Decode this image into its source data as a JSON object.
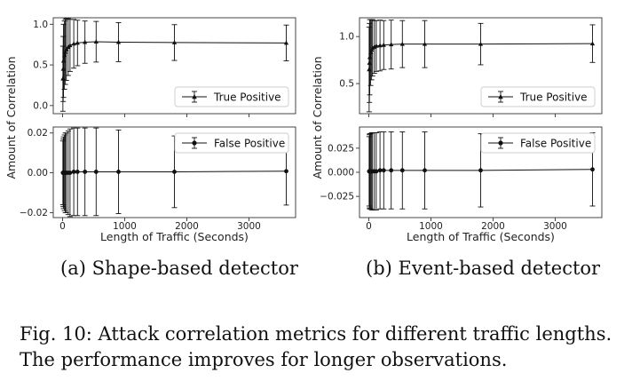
{
  "chart_data": [
    {
      "type": "line",
      "id": "a",
      "caption": "(a) Shape-based detector",
      "xlabel": "Length of Traffic (Seconds)",
      "ylabel": "Amount of Correlation",
      "xlim": [
        -150,
        3750
      ],
      "xticks": [
        0,
        1000,
        2000,
        3000
      ],
      "grid": false,
      "panels": [
        {
          "name": "top",
          "ylim": [
            -0.1,
            1.08
          ],
          "yticks": [
            0.0,
            0.5,
            1.0
          ],
          "ytick_labels": [
            "0.0",
            "0.5",
            "1.0"
          ],
          "legend": "bottom-right",
          "series": [
            {
              "name": "True Positive",
              "marker": "triangle",
              "x": [
                5,
                10,
                15,
                30,
                45,
                60,
                90,
                120,
                180,
                240,
                360,
                540,
                900,
                1800,
                3600
              ],
              "y": [
                0.33,
                0.45,
                0.55,
                0.62,
                0.66,
                0.69,
                0.72,
                0.74,
                0.76,
                0.77,
                0.78,
                0.785,
                0.78,
                0.775,
                0.77
              ],
              "err": [
                0.4,
                0.4,
                0.45,
                0.42,
                0.4,
                0.38,
                0.35,
                0.32,
                0.3,
                0.28,
                0.26,
                0.25,
                0.24,
                0.22,
                0.22
              ]
            }
          ]
        },
        {
          "name": "bottom",
          "ylim": [
            -0.0225,
            0.023
          ],
          "yticks": [
            -0.02,
            0.0,
            0.02
          ],
          "ytick_labels": [
            "−0.02",
            "0.00",
            "0.02"
          ],
          "legend": "top-right",
          "series": [
            {
              "name": "False Positive",
              "marker": "circle",
              "x": [
                5,
                10,
                15,
                30,
                45,
                60,
                90,
                120,
                180,
                240,
                360,
                540,
                900,
                1800,
                3600
              ],
              "y": [
                0.0,
                0.0,
                0.0,
                0.0,
                0.0,
                0.0,
                0.0,
                0.0,
                0.0005,
                0.0005,
                0.0005,
                0.0005,
                0.0005,
                0.0005,
                0.0008
              ],
              "err": [
                0.016,
                0.017,
                0.018,
                0.019,
                0.02,
                0.02,
                0.021,
                0.022,
                0.022,
                0.022,
                0.022,
                0.022,
                0.021,
                0.018,
                0.017
              ]
            }
          ]
        }
      ]
    },
    {
      "type": "line",
      "id": "b",
      "caption": "(b) Event-based detector",
      "xlabel": "Length of Traffic (Seconds)",
      "ylabel": "Amount of Correlation",
      "xlim": [
        -150,
        3750
      ],
      "xticks": [
        0,
        1000,
        2000,
        3000
      ],
      "grid": false,
      "panels": [
        {
          "name": "top",
          "ylim": [
            0.18,
            1.2
          ],
          "yticks": [
            0.5,
            1.0
          ],
          "ytick_labels": [
            "0.5",
            "1.0"
          ],
          "legend": "bottom-right",
          "series": [
            {
              "name": "True Positive",
              "marker": "triangle",
              "x": [
                5,
                10,
                15,
                30,
                45,
                60,
                90,
                120,
                180,
                240,
                360,
                540,
                900,
                1800,
                3600
              ],
              "y": [
                0.65,
                0.72,
                0.78,
                0.83,
                0.86,
                0.88,
                0.89,
                0.9,
                0.905,
                0.91,
                0.915,
                0.92,
                0.92,
                0.92,
                0.925
              ],
              "err": [
                0.45,
                0.42,
                0.4,
                0.35,
                0.32,
                0.3,
                0.28,
                0.27,
                0.27,
                0.26,
                0.26,
                0.25,
                0.25,
                0.22,
                0.2
              ]
            }
          ]
        },
        {
          "name": "bottom",
          "ylim": [
            -0.047,
            0.047
          ],
          "yticks": [
            -0.025,
            0.0,
            0.025
          ],
          "ytick_labels": [
            "−0.025",
            "0.000",
            "0.025"
          ],
          "legend": "top-right",
          "series": [
            {
              "name": "False Positive",
              "marker": "circle",
              "x": [
                5,
                10,
                15,
                30,
                45,
                60,
                90,
                120,
                180,
                240,
                360,
                540,
                900,
                1800,
                3600
              ],
              "y": [
                0.001,
                0.001,
                0.001,
                0.001,
                0.001,
                0.001,
                0.001,
                0.001,
                0.002,
                0.002,
                0.002,
                0.002,
                0.002,
                0.002,
                0.003
              ],
              "err": [
                0.036,
                0.038,
                0.039,
                0.039,
                0.04,
                0.04,
                0.04,
                0.04,
                0.04,
                0.04,
                0.04,
                0.04,
                0.04,
                0.038,
                0.038
              ]
            }
          ]
        }
      ]
    }
  ],
  "figure_caption": {
    "line1": "Fig. 10: Attack correlation metrics for different traffic lengths.",
    "line2": "The performance improves for longer observations."
  }
}
